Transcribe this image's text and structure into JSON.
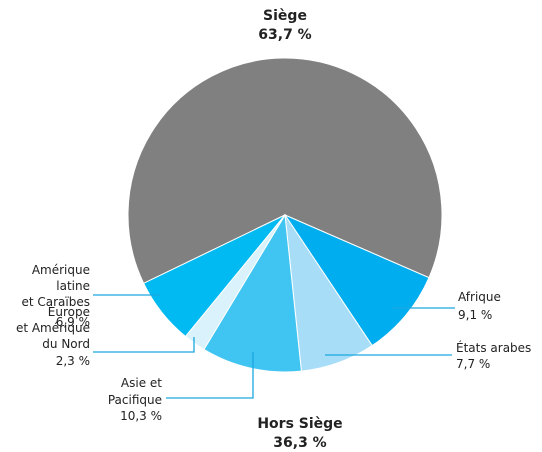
{
  "chart_data": {
    "type": "pie",
    "categories": [
      "Siège",
      "Afrique",
      "États arabes",
      "Asie et\nPacifique",
      "Europe\net Amérique\ndu Nord",
      "Amérique\nlatine\net Caraïbes"
    ],
    "values": [
      63.7,
      9.1,
      7.7,
      10.3,
      2.3,
      6.9
    ],
    "value_labels": [
      "63,7 %",
      "9,1 %",
      "7,7 %",
      "10,3 %",
      "2,3 %",
      "6,9 %"
    ],
    "colors": [
      "#808080",
      "#00aeef",
      "#a8ddf8",
      "#40c4f1",
      "#d9f2fc",
      "#00baf1"
    ],
    "groups": [
      {
        "label": "Hors Siège",
        "value": 36.3,
        "value_label": "36,3 %"
      }
    ]
  }
}
